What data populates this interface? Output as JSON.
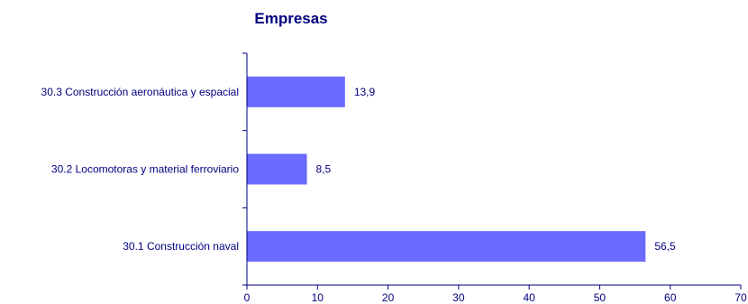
{
  "chart_data": {
    "type": "bar",
    "orientation": "horizontal",
    "title": "Empresas",
    "categories": [
      "30.3 Construcción aeronáutica y espacial",
      "30.2 Locomotoras y material ferroviario",
      "30.1 Construcción naval"
    ],
    "values": [
      13.9,
      8.5,
      56.5
    ],
    "value_labels": [
      "13,9",
      "8,5",
      "56,5"
    ],
    "xlim": [
      0,
      70
    ],
    "xticks": [
      0,
      10,
      20,
      30,
      40,
      50,
      60,
      70
    ],
    "xtick_labels": [
      "0",
      "10",
      "20",
      "30",
      "40",
      "50",
      "60",
      "70"
    ],
    "xlabel": "",
    "ylabel": "",
    "grid": false,
    "legend": "none"
  },
  "colors": {
    "bar": "#6b6bff",
    "text": "#00007f",
    "axis": "#00007f"
  }
}
